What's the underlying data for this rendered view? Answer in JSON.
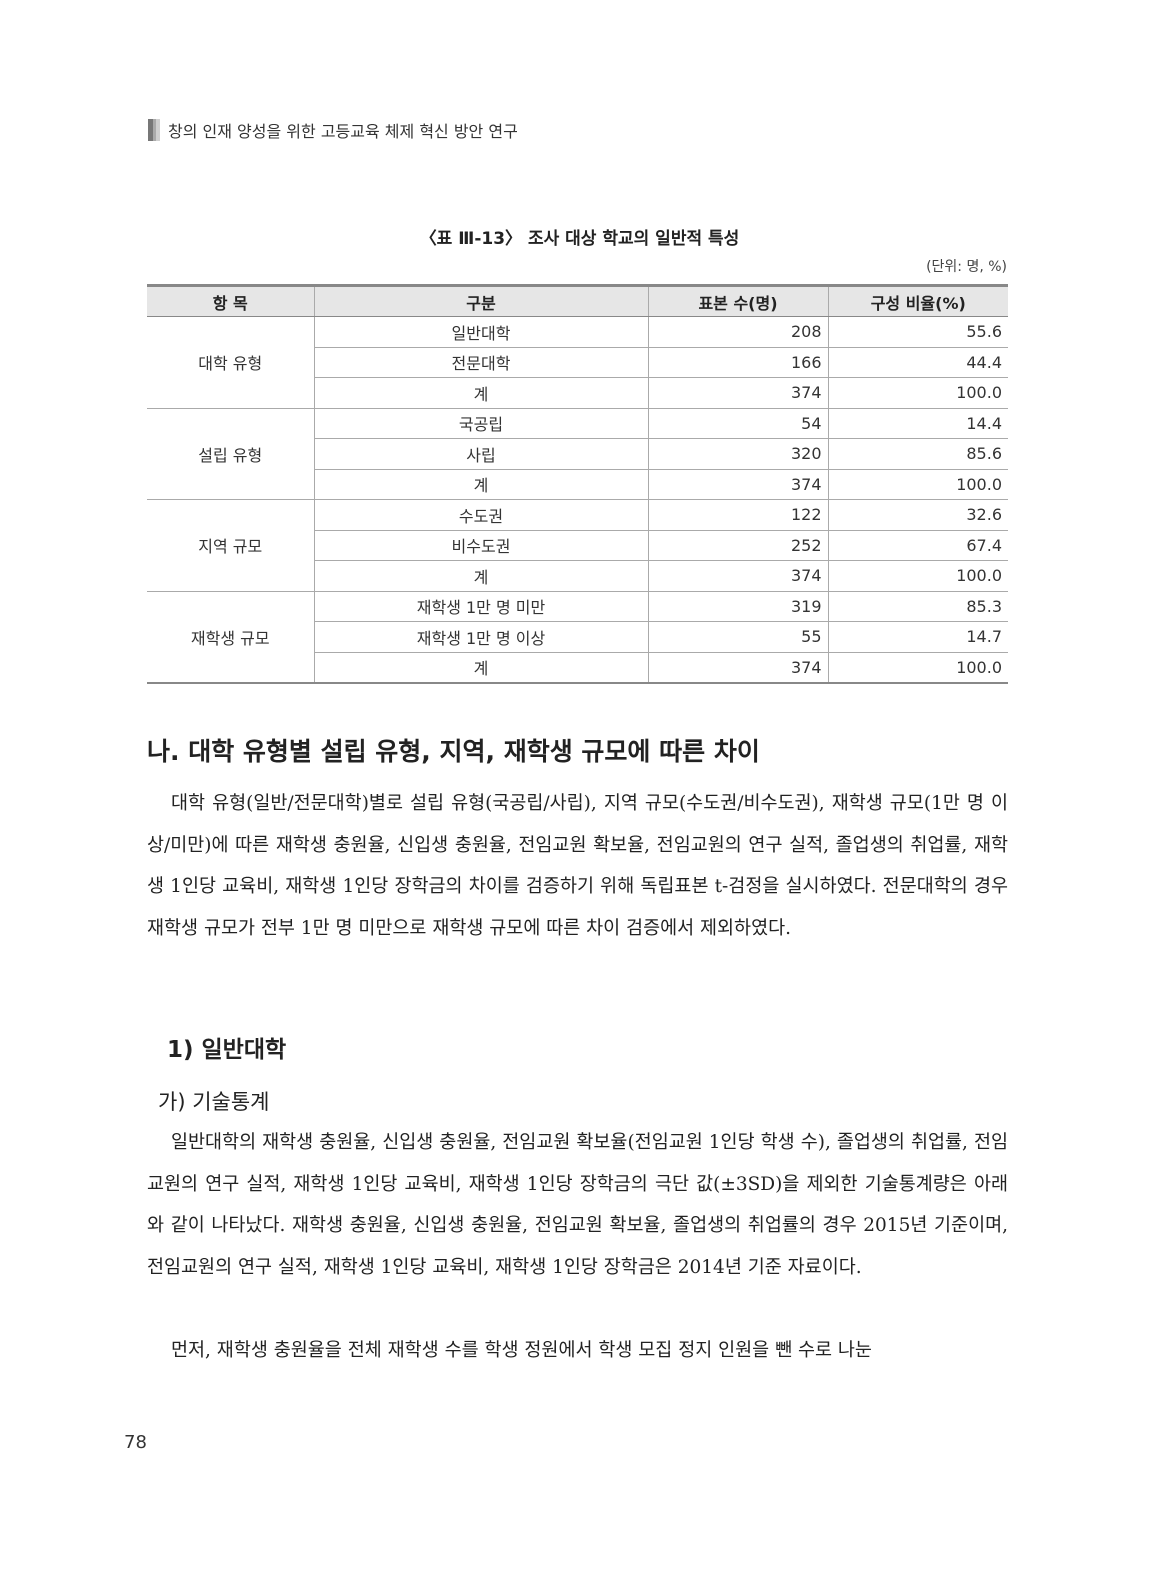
{
  "running_header": "창의 인재 양성을 위한 고등교육 체제 혁신 방안 연구",
  "table": {
    "caption": "〈표 Ⅲ-13〉 조사 대상 학교의 일반적 특성",
    "unit": "(단위: 명, %)",
    "headers": [
      "항 목",
      "구분",
      "표본 수(명)",
      "구성 비율(%)"
    ],
    "groups": [
      {
        "category": "대학 유형",
        "rows": [
          [
            "일반대학",
            "208",
            "55.6"
          ],
          [
            "전문대학",
            "166",
            "44.4"
          ],
          [
            "계",
            "374",
            "100.0"
          ]
        ]
      },
      {
        "category": "설립 유형",
        "rows": [
          [
            "국공립",
            "54",
            "14.4"
          ],
          [
            "사립",
            "320",
            "85.6"
          ],
          [
            "계",
            "374",
            "100.0"
          ]
        ]
      },
      {
        "category": "지역 규모",
        "rows": [
          [
            "수도권",
            "122",
            "32.6"
          ],
          [
            "비수도권",
            "252",
            "67.4"
          ],
          [
            "계",
            "374",
            "100.0"
          ]
        ]
      },
      {
        "category": "재학생 규모",
        "rows": [
          [
            "재학생 1만 명 미만",
            "319",
            "85.3"
          ],
          [
            "재학생 1만 명 이상",
            "55",
            "14.7"
          ],
          [
            "계",
            "374",
            "100.0"
          ]
        ]
      }
    ]
  },
  "section_heading": "나. 대학 유형별 설립 유형, 지역, 재학생 규모에 따른 차이",
  "paragraph1": "대학 유형(일반/전문대학)별로 설립 유형(국공립/사립), 지역 규모(수도권/비수도권), 재학생 규모(1만 명 이상/미만)에 따른 재학생 충원율, 신입생 충원율, 전임교원 확보율, 전임교원의 연구 실적, 졸업생의 취업률, 재학생 1인당 교육비, 재학생 1인당 장학금의 차이를 검증하기 위해 독립표본 t-검정을 실시하였다. 전문대학의 경우 재학생 규모가 전부 1만 명 미만으로 재학생 규모에 따른 차이 검증에서 제외하였다.",
  "subheading": "1) 일반대학",
  "subsubheading": "가) 기술통계",
  "paragraph2": "일반대학의 재학생 충원율, 신입생 충원율, 전임교원 확보율(전임교원 1인당 학생 수), 졸업생의 취업률, 전임교원의 연구 실적, 재학생 1인당 교육비, 재학생 1인당 장학금의 극단 값(±3SD)을 제외한 기술통계량은 아래와 같이 나타났다. 재학생 충원율, 신입생 충원율, 전임교원 확보율, 졸업생의 취업률의 경우 2015년 기준이며, 전임교원의 연구 실적, 재학생 1인당 교육비, 재학생 1인당 장학금은 2014년 기준 자료이다.",
  "paragraph3": "먼저, 재학생 충원율을 전체 재학생 수를 학생 정원에서 학생 모집 정지 인원을 뺀 수로 나눈",
  "page_number": "78"
}
